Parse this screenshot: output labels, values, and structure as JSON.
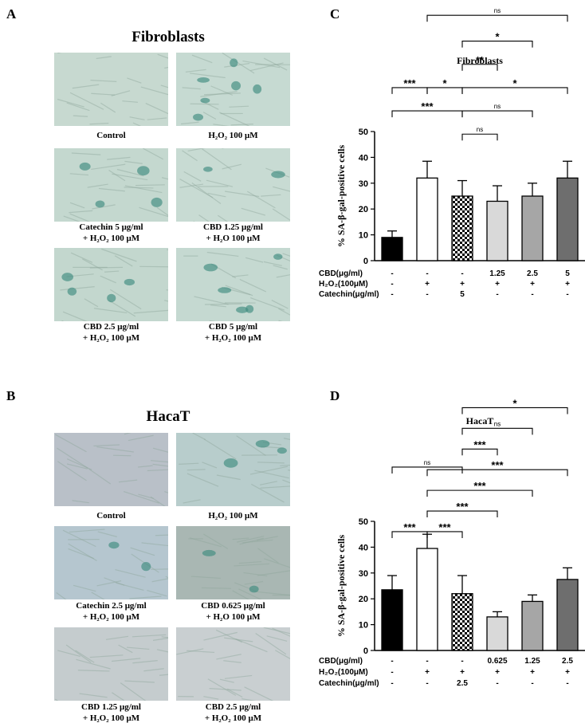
{
  "panels": {
    "A": {
      "label": "A",
      "title": "Fibroblasts",
      "images": [
        {
          "caption1": "Control",
          "caption2": "",
          "bg": "#c7d9d0",
          "spots": 0
        },
        {
          "caption1": "H₂O₂ 100 μM",
          "caption2": "",
          "bg": "#c6dad2",
          "spots": 6
        },
        {
          "caption1": "Catechin 5 μg/ml",
          "caption2": "+ H₂O₂ 100 μM",
          "bg": "#c4d8cf",
          "spots": 4
        },
        {
          "caption1": "CBD 1.25 μg/ml",
          "caption2": "+ H₂O 100 μM",
          "bg": "#c8dbd3",
          "spots": 2
        },
        {
          "caption1": "CBD 2.5 μg/ml",
          "caption2": "+ H₂O₂ 100 μM",
          "bg": "#c3d7ce",
          "spots": 4
        },
        {
          "caption1": "CBD 5 μg/ml",
          "caption2": "+ H₂O₂ 100 μM",
          "bg": "#c5d9d1",
          "spots": 5
        }
      ]
    },
    "B": {
      "label": "B",
      "title": "HacaT",
      "images": [
        {
          "caption1": "Control",
          "caption2": "",
          "bg": "#b9c0c8",
          "spots": 0
        },
        {
          "caption1": "H₂O₂ 100 μM",
          "caption2": "",
          "bg": "#b8cdcc",
          "spots": 3
        },
        {
          "caption1": "Catechin 2.5 μg/ml",
          "caption2": "+ H₂O₂ 100 μM",
          "bg": "#b5c6cf",
          "spots": 2
        },
        {
          "caption1": "CBD 0.625 μg/ml",
          "caption2": "+ H₂O 100 μM",
          "bg": "#a9b7b3",
          "spots": 2
        },
        {
          "caption1": "CBD 1.25 μg/ml",
          "caption2": "+ H₂O₂ 100 μM",
          "bg": "#c5ccce",
          "spots": 0
        },
        {
          "caption1": "CBD 2.5 μg/ml",
          "caption2": "+ H₂O₂ 100 μM",
          "bg": "#c9cfd1",
          "spots": 0
        }
      ]
    }
  },
  "chart_data": [
    {
      "panel": "C",
      "type": "bar",
      "title": "Fibroblasts",
      "ylabel": "% SA-β-gal-positive cells",
      "ylim": [
        0,
        50
      ],
      "yticks": [
        "0",
        "10",
        "20",
        "30",
        "40",
        "50"
      ],
      "values": [
        9,
        32,
        25,
        23,
        25,
        32
      ],
      "errors": [
        2.5,
        6.5,
        6,
        6,
        5,
        6.5
      ],
      "colors": [
        "#000000",
        "#ffffff",
        "checker",
        "#d9d9d9",
        "#a6a6a6",
        "#6e6e6e"
      ],
      "table": [
        {
          "label": "CBD(μg/ml)",
          "cells": [
            "-",
            "-",
            "-",
            "1.25",
            "2.5",
            "5"
          ]
        },
        {
          "label": "H₂O₂(100μM)",
          "cells": [
            "-",
            "+",
            "+",
            "+",
            "+",
            "+"
          ]
        },
        {
          "label": "Catechin(μg/ml)",
          "cells": [
            "-",
            "-",
            "5",
            "-",
            "-",
            "-"
          ]
        }
      ],
      "brackets": [
        {
          "from": 1,
          "to": 5,
          "level": 95,
          "text": "ns"
        },
        {
          "from": 2,
          "to": 4,
          "level": 85,
          "text": "*"
        },
        {
          "from": 2,
          "to": 3,
          "level": 76,
          "text": "**"
        },
        {
          "from": 0,
          "to": 1,
          "level": 67,
          "text": "***"
        },
        {
          "from": 1,
          "to": 2,
          "level": 67,
          "text": "*"
        },
        {
          "from": 2,
          "to": 5,
          "level": 67,
          "text": "*"
        },
        {
          "from": 0,
          "to": 2,
          "level": 58,
          "text": "***"
        },
        {
          "from": 2,
          "to": 4,
          "level": 58,
          "text": "ns"
        },
        {
          "from": 2,
          "to": 3,
          "level": 49,
          "text": "ns"
        }
      ]
    },
    {
      "panel": "D",
      "type": "bar",
      "title": "HacaT",
      "ylabel": "% SA-β-gal-positive cells",
      "ylim": [
        0,
        50
      ],
      "yticks": [
        "0",
        "10",
        "20",
        "30",
        "40",
        "50"
      ],
      "values": [
        23.5,
        39.5,
        22,
        13,
        19,
        27.5
      ],
      "errors": [
        5.5,
        5.5,
        7,
        2,
        2.5,
        4.5
      ],
      "colors": [
        "#000000",
        "#ffffff",
        "checker",
        "#d9d9d9",
        "#a6a6a6",
        "#6e6e6e"
      ],
      "table": [
        {
          "label": "CBD(μg/ml)",
          "cells": [
            "-",
            "-",
            "-",
            "0.625",
            "1.25",
            "2.5"
          ]
        },
        {
          "label": "H₂O₂(100μM)",
          "cells": [
            "-",
            "+",
            "+",
            "+",
            "+",
            "+"
          ]
        },
        {
          "label": "Catechin(μg/ml)",
          "cells": [
            "-",
            "-",
            "2.5",
            "-",
            "-",
            "-"
          ]
        }
      ],
      "brackets": [
        {
          "from": 2,
          "to": 5,
          "level": 94,
          "text": "*"
        },
        {
          "from": 2,
          "to": 4,
          "level": 86,
          "text": "ns"
        },
        {
          "from": 2,
          "to": 3,
          "level": 78,
          "text": "***"
        },
        {
          "from": 0,
          "to": 2,
          "level": 71,
          "text": "ns"
        },
        {
          "from": 1,
          "to": 5,
          "level": 70,
          "text": "***"
        },
        {
          "from": 1,
          "to": 4,
          "level": 62,
          "text": "***"
        },
        {
          "from": 1,
          "to": 3,
          "level": 54,
          "text": "***"
        },
        {
          "from": 0,
          "to": 1,
          "level": 46,
          "text": "***"
        },
        {
          "from": 1,
          "to": 2,
          "level": 46,
          "text": "***"
        }
      ]
    }
  ],
  "chart_panel_labels": [
    "C",
    "D"
  ]
}
